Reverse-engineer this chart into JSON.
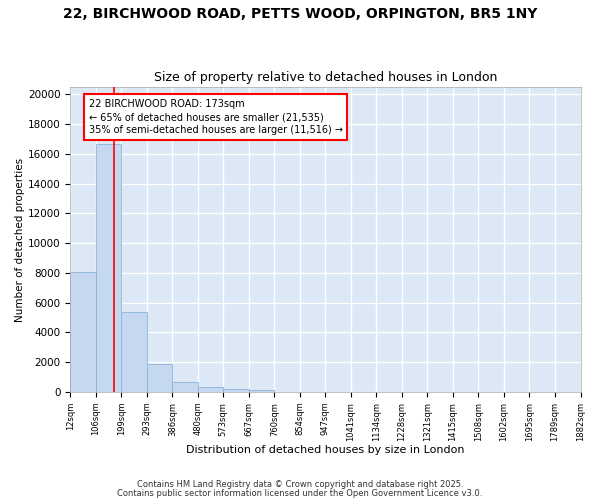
{
  "title_line1": "22, BIRCHWOOD ROAD, PETTS WOOD, ORPINGTON, BR5 1NY",
  "title_line2": "Size of property relative to detached houses in London",
  "bar_values": [
    8100,
    16700,
    5400,
    1850,
    700,
    350,
    200,
    150,
    0,
    0,
    0,
    0,
    0,
    0,
    0,
    0,
    0,
    0,
    0,
    0
  ],
  "x_labels": [
    "12sqm",
    "106sqm",
    "199sqm",
    "293sqm",
    "386sqm",
    "480sqm",
    "573sqm",
    "667sqm",
    "760sqm",
    "854sqm",
    "947sqm",
    "1041sqm",
    "1134sqm",
    "1228sqm",
    "1321sqm",
    "1415sqm",
    "1508sqm",
    "1602sqm",
    "1695sqm",
    "1789sqm",
    "1882sqm"
  ],
  "bar_color": "#c5d8f0",
  "bar_edge_color": "#89b4d9",
  "background_color": "#dce8f5",
  "grid_color": "#ffffff",
  "ylabel": "Number of detached properties",
  "xlabel": "Distribution of detached houses by size in London",
  "annotation_text": "22 BIRCHWOOD ROAD: 173sqm\n← 65% of detached houses are smaller (21,535)\n35% of semi-detached houses are larger (11,516) →",
  "ylim": [
    0,
    20500
  ],
  "yticks": [
    0,
    2000,
    4000,
    6000,
    8000,
    10000,
    12000,
    14000,
    16000,
    18000,
    20000
  ],
  "footnote_line1": "Contains HM Land Registry data © Crown copyright and database right 2025.",
  "footnote_line2": "Contains public sector information licensed under the Open Government Licence v3.0.",
  "title_fontsize": 10,
  "subtitle_fontsize": 9,
  "fig_width": 6.0,
  "fig_height": 5.0,
  "fig_dpi": 100
}
